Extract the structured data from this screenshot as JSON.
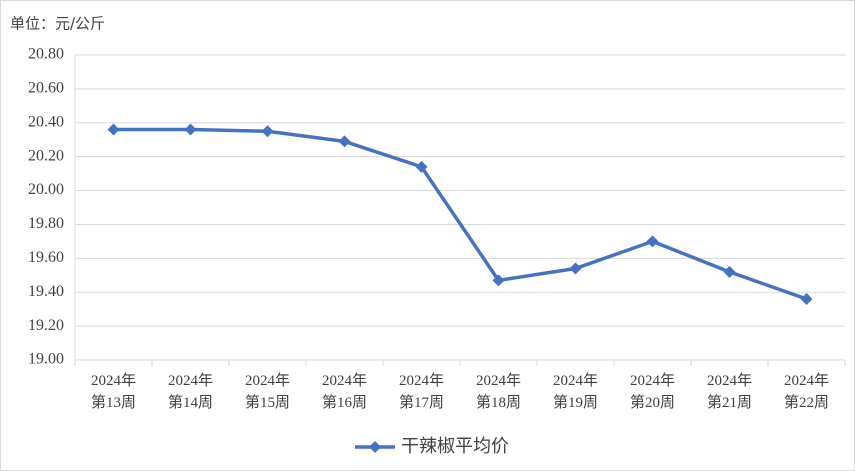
{
  "chart_data": {
    "type": "line",
    "title": "单位：元/公斤",
    "categories": [
      "2024年\n第13周",
      "2024年\n第14周",
      "2024年\n第15周",
      "2024年\n第16周",
      "2024年\n第17周",
      "2024年\n第18周",
      "2024年\n第19周",
      "2024年\n第20周",
      "2024年\n第21周",
      "2024年\n第22周"
    ],
    "series": [
      {
        "name": "干辣椒平均价",
        "color": "#4472c4",
        "values": [
          20.36,
          20.36,
          20.35,
          20.29,
          20.14,
          19.47,
          19.54,
          19.7,
          19.52,
          19.36
        ]
      }
    ],
    "ylim": [
      19,
      20.8
    ],
    "yticks": [
      {
        "value": 19,
        "label": "19.00"
      },
      {
        "value": 19.2,
        "label": "19.20"
      },
      {
        "value": 19.4,
        "label": "19.40"
      },
      {
        "value": 19.6,
        "label": "19.60"
      },
      {
        "value": 19.8,
        "label": "19.80"
      },
      {
        "value": 20,
        "label": "20.00"
      },
      {
        "value": 20.2,
        "label": "20.20"
      },
      {
        "value": 20.4,
        "label": "20.40"
      },
      {
        "value": 20.6,
        "label": "20.60"
      },
      {
        "value": 20.8,
        "label": "20.80"
      }
    ],
    "grid": true,
    "legend": "bottom"
  }
}
